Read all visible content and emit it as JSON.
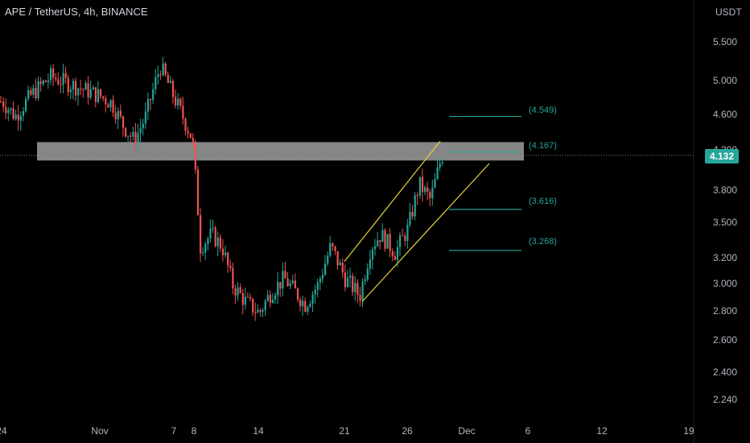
{
  "header": {
    "symbol_title": "APE / TetherUS, 4h, BINANCE"
  },
  "price_axis": {
    "unit": "USDT",
    "ticks": [
      "5.500",
      "5.000",
      "4.600",
      "4.200",
      "3.800",
      "3.500",
      "3.200",
      "3.000",
      "2.800",
      "2.600",
      "2.400",
      "2.240"
    ],
    "current_price": "4.132"
  },
  "time_axis": {
    "ticks": [
      "24",
      "Nov",
      "7",
      "8",
      "14",
      "21",
      "26",
      "Dec",
      "6",
      "12",
      "19"
    ]
  },
  "levels": {
    "target_high": "(4.549)",
    "resistance": "(4.167)",
    "mid": "(3.616)",
    "low": "(3.268)"
  },
  "colors": {
    "background": "#000000",
    "bull": "#26a69a",
    "bear": "#ef5350",
    "channel": "#e6d43a",
    "zone": "#9e9e9e",
    "level_line": "#26a69a"
  },
  "chart_data": {
    "type": "candlestick",
    "title": "APE / TetherUS, 4h, BINANCE",
    "ylabel": "USDT",
    "ylim": [
      2.2,
      5.6
    ],
    "y_scale": "log",
    "current_price": 4.132,
    "resistance_zone": [
      4.08,
      4.27
    ],
    "levels": [
      4.549,
      4.167,
      3.616,
      3.268
    ],
    "close_path": [
      [
        "Oct 24",
        4.72
      ],
      [
        "Oct 26",
        4.55
      ],
      [
        "Oct 28",
        4.8
      ],
      [
        "Oct 30",
        5.02
      ],
      [
        "Nov 1",
        4.78
      ],
      [
        "Nov 2",
        4.7
      ],
      [
        "Nov 3",
        4.45
      ],
      [
        "Nov 4",
        4.28
      ],
      [
        "Nov 5",
        4.55
      ],
      [
        "Nov 6",
        5.15
      ],
      [
        "Nov 7",
        4.75
      ],
      [
        "Nov 8",
        4.3
      ],
      [
        "Nov 9",
        3.3
      ],
      [
        "Nov 10",
        3.4
      ],
      [
        "Nov 11",
        3.3
      ],
      [
        "Nov 12",
        3.0
      ],
      [
        "Nov 13",
        2.88
      ],
      [
        "Nov 14",
        2.8
      ],
      [
        "Nov 15",
        2.95
      ],
      [
        "Nov 16",
        3.05
      ],
      [
        "Nov 17",
        2.95
      ],
      [
        "Nov 18",
        2.86
      ],
      [
        "Nov 19",
        3.0
      ],
      [
        "Nov 20",
        3.3
      ],
      [
        "Nov 21",
        3.05
      ],
      [
        "Nov 22",
        2.92
      ],
      [
        "Nov 23",
        3.3
      ],
      [
        "Nov 24",
        3.4
      ],
      [
        "Nov 25",
        3.25
      ],
      [
        "Nov 26",
        3.45
      ],
      [
        "Nov 27",
        3.85
      ],
      [
        "Nov 28",
        3.7
      ],
      [
        "Nov 29",
        4.13
      ]
    ]
  }
}
